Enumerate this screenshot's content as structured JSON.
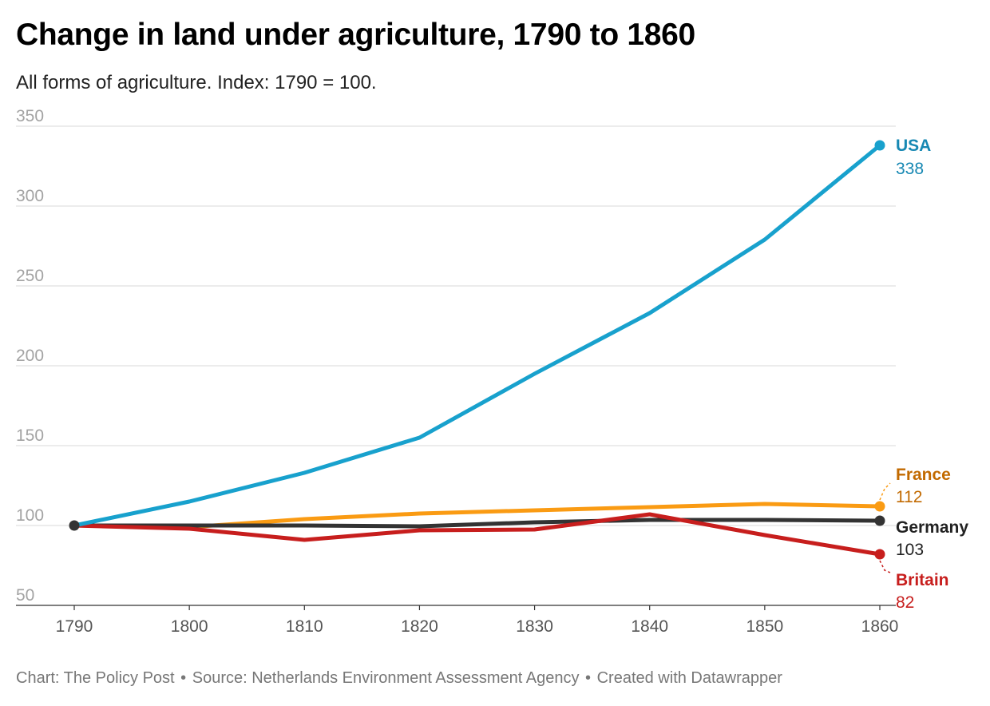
{
  "header": {
    "title": "Change in land under agriculture, 1790 to 1860",
    "subtitle": "All forms of agriculture. Index: 1790 = 100."
  },
  "footer": {
    "credit": "Chart: The Policy Post",
    "separator": "•",
    "source": "Source: Netherlands Environment Assessment Agency",
    "tool": "Created with Datawrapper"
  },
  "chart_data": {
    "type": "line",
    "title": "Change in land under agriculture, 1790 to 1860",
    "subtitle": "All forms of agriculture. Index: 1790 = 100.",
    "xlabel": "",
    "ylabel": "",
    "x": [
      1790,
      1800,
      1810,
      1820,
      1830,
      1840,
      1850,
      1860
    ],
    "x_tick_labels": [
      "1790",
      "1800",
      "1810",
      "1820",
      "1830",
      "1840",
      "1850",
      "1860"
    ],
    "y_ticks": [
      50,
      100,
      150,
      200,
      250,
      300,
      350
    ],
    "y_tick_labels": [
      "50",
      "100",
      "150",
      "200",
      "250",
      "300",
      "350"
    ],
    "xlim": [
      1790,
      1860
    ],
    "ylim": [
      50,
      350
    ],
    "grid": true,
    "legend": "direct labels at line ends (right)",
    "series": [
      {
        "name": "USA",
        "color": "#18a1cd",
        "label_color": "#1788b3",
        "values": [
          100,
          115,
          133,
          155,
          195,
          233,
          279,
          338
        ],
        "end_label": "338",
        "connector": false
      },
      {
        "name": "France",
        "color": "#fa9b13",
        "label_color": "#c26a00",
        "values": [
          100,
          99,
          104,
          107.5,
          109.5,
          111.5,
          113.5,
          112
        ],
        "end_label": "112",
        "connector": true
      },
      {
        "name": "Germany",
        "color": "#333333",
        "label_color": "#222222",
        "values": [
          100,
          100,
          100,
          99.5,
          102,
          103.5,
          103.5,
          103
        ],
        "end_label": "103",
        "connector": false
      },
      {
        "name": "Britain",
        "color": "#c71e1d",
        "label_color": "#c71e1d",
        "values": [
          100,
          98,
          91,
          97,
          97.5,
          107,
          94,
          82
        ],
        "end_label": "82",
        "connector": true
      }
    ]
  }
}
